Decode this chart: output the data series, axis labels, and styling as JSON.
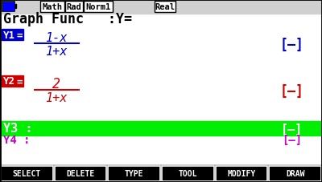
{
  "bg_color": "#ffffff",
  "status_bar_bg": "#d0d0d0",
  "title_text": "Graph Func   :Y=",
  "Y1_color": "#0000cc",
  "Y1_num": "1-x",
  "Y1_den": "1+x",
  "Y2_color": "#cc0000",
  "Y2_num": "2",
  "Y2_den": "1+x",
  "Y3_bg": "#00ee00",
  "Y3_text_color": "#ffffff",
  "Y4_color": "#cc00cc",
  "bottom_bar_bg": "#000000",
  "bottom_bar_text_color": "#ffffff",
  "bottom_buttons": [
    "SELECT",
    "DELETE",
    "TYPE",
    "TOOL",
    "MODIFY",
    "DRAW"
  ],
  "fig_width": 4.0,
  "fig_height": 2.28,
  "dpi": 100
}
